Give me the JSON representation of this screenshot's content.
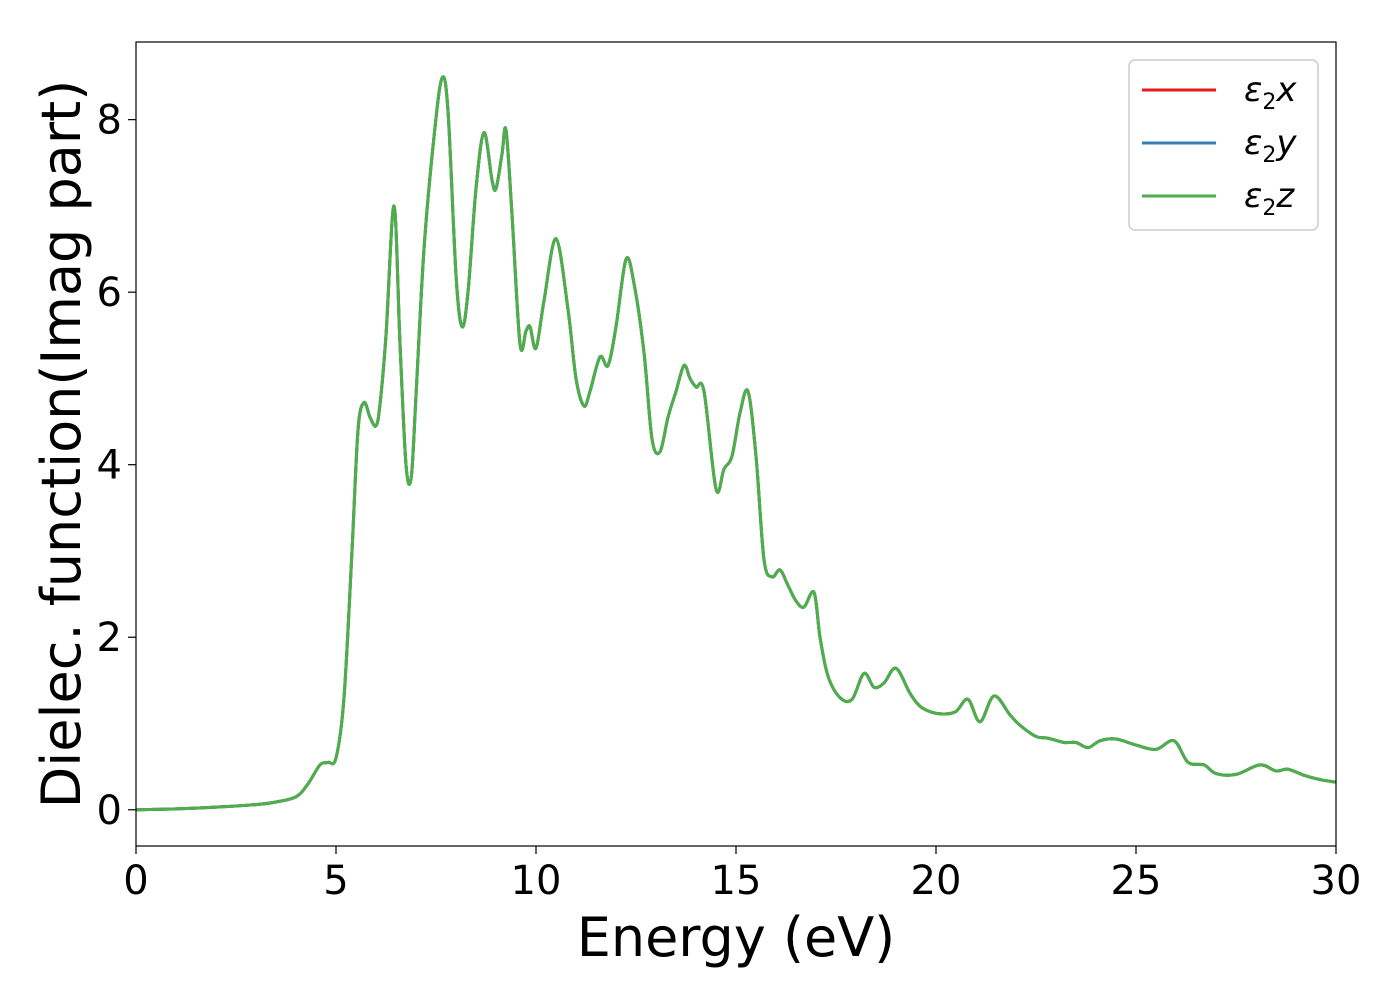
{
  "chart_data": {
    "type": "line",
    "xlabel": "Energy (eV)",
    "ylabel": "Dielec. function(Imag part)",
    "xlim": [
      0,
      30
    ],
    "ylim": [
      -0.42,
      8.9
    ],
    "xticks": [
      0,
      5,
      10,
      15,
      20,
      25,
      30
    ],
    "yticks": [
      0,
      2,
      4,
      6,
      8
    ],
    "grid": false,
    "legend_position": "top-right",
    "series": [
      {
        "name": "ε2x",
        "legend_base": "ε",
        "legend_sub": "2",
        "legend_suffix": "x",
        "color": "#e41a1c"
      },
      {
        "name": "ε2y",
        "legend_base": "ε",
        "legend_sub": "2",
        "legend_suffix": "y",
        "color": "#377eb8"
      },
      {
        "name": "ε2z",
        "legend_base": "ε",
        "legend_sub": "2",
        "legend_suffix": "z",
        "color": "#4daf4a"
      }
    ],
    "x": [
      0,
      1,
      2,
      3,
      3.5,
      4,
      4.3,
      4.6,
      4.8,
      5.0,
      5.2,
      5.4,
      5.55,
      5.7,
      5.85,
      6.0,
      6.1,
      6.25,
      6.45,
      6.6,
      6.75,
      6.88,
      7.0,
      7.2,
      7.45,
      7.65,
      7.8,
      8.0,
      8.15,
      8.3,
      8.5,
      8.7,
      8.9,
      9.0,
      9.15,
      9.25,
      9.4,
      9.6,
      9.75,
      9.85,
      10.0,
      10.2,
      10.5,
      10.8,
      11.0,
      11.2,
      11.35,
      11.6,
      11.8,
      12.0,
      12.25,
      12.45,
      12.7,
      12.9,
      13.1,
      13.3,
      13.5,
      13.7,
      13.85,
      14.0,
      14.2,
      14.5,
      14.7,
      14.9,
      15.1,
      15.3,
      15.5,
      15.7,
      15.9,
      16.1,
      16.3,
      16.5,
      16.7,
      16.95,
      17.1,
      17.3,
      17.6,
      17.9,
      18.2,
      18.45,
      18.7,
      19.0,
      19.35,
      19.6,
      19.9,
      20.2,
      20.5,
      20.8,
      21.1,
      21.45,
      21.85,
      22.1,
      22.5,
      22.8,
      23.2,
      23.5,
      23.8,
      24.1,
      24.5,
      25.0,
      25.5,
      25.95,
      26.3,
      26.7,
      27.0,
      27.5,
      28.1,
      28.5,
      28.8,
      29.2,
      29.6,
      30.0
    ],
    "values": [
      0.0,
      0.01,
      0.03,
      0.06,
      0.09,
      0.15,
      0.3,
      0.52,
      0.55,
      0.6,
      1.3,
      3.0,
      4.4,
      4.72,
      4.55,
      4.45,
      4.7,
      5.5,
      7.0,
      5.4,
      4.0,
      3.85,
      4.8,
      6.5,
      7.8,
      8.48,
      8.1,
      6.2,
      5.6,
      6.0,
      7.2,
      7.85,
      7.3,
      7.2,
      7.6,
      7.88,
      6.9,
      5.4,
      5.55,
      5.6,
      5.35,
      5.9,
      6.62,
      5.8,
      5.0,
      4.68,
      4.85,
      5.25,
      5.15,
      5.6,
      6.38,
      6.1,
      5.3,
      4.3,
      4.15,
      4.55,
      4.85,
      5.15,
      5.0,
      4.9,
      4.85,
      3.72,
      3.95,
      4.1,
      4.6,
      4.85,
      4.1,
      2.9,
      2.7,
      2.78,
      2.6,
      2.42,
      2.35,
      2.52,
      2.0,
      1.55,
      1.3,
      1.28,
      1.58,
      1.42,
      1.47,
      1.64,
      1.35,
      1.2,
      1.13,
      1.11,
      1.14,
      1.28,
      1.02,
      1.32,
      1.1,
      0.98,
      0.85,
      0.83,
      0.78,
      0.78,
      0.72,
      0.8,
      0.82,
      0.75,
      0.7,
      0.8,
      0.55,
      0.52,
      0.42,
      0.41,
      0.52,
      0.45,
      0.47,
      0.4,
      0.35,
      0.32
    ]
  }
}
